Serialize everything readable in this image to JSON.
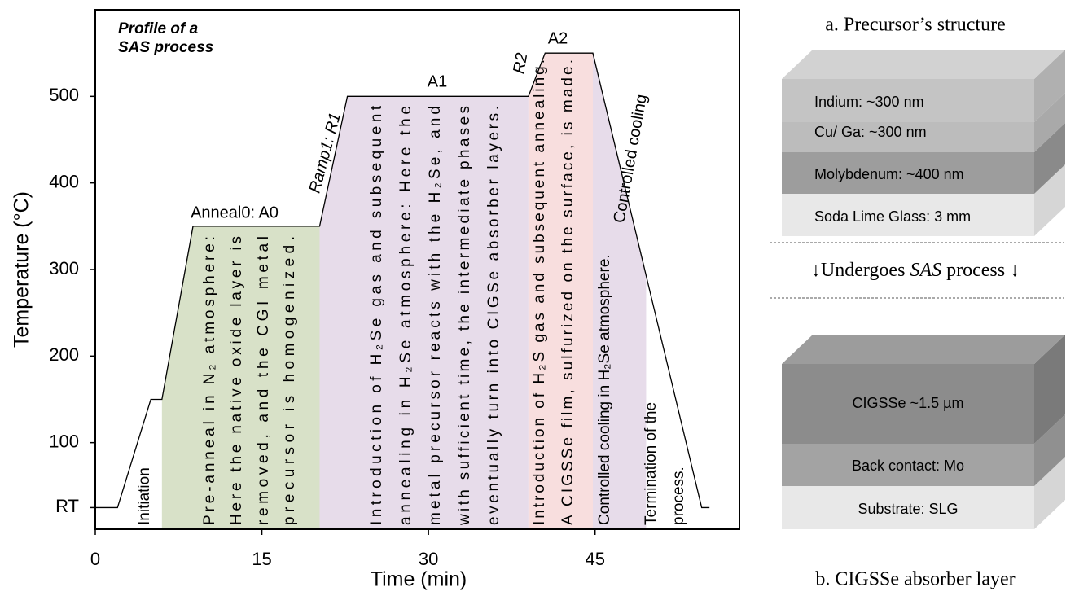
{
  "chart_data": {
    "type": "line",
    "annotation": [
      "Profile of a",
      "SAS process"
    ],
    "x_label": "Time (min)",
    "y_label": "Temperature (°C)",
    "x": [
      0,
      2,
      5,
      6,
      8.8,
      20.2,
      22.7,
      39,
      40.5,
      44.8,
      54.6,
      55.3
    ],
    "values": [
      25,
      25,
      150,
      150,
      350,
      350,
      500,
      500,
      550,
      550,
      25,
      25
    ],
    "color": "#000000",
    "xlim": [
      0,
      58
    ],
    "xticks": [
      0,
      15,
      30,
      45
    ],
    "ylim": [
      0,
      600
    ],
    "yticks": [
      {
        "value": 25,
        "label": "RT"
      },
      100,
      200,
      300,
      400,
      500
    ],
    "regions": [
      {
        "x": [
          6,
          20.2
        ],
        "color": "#d8e1c8"
      },
      {
        "x": [
          20.2,
          39
        ],
        "color": "#e7dcea"
      },
      {
        "x": [
          39,
          44.8
        ],
        "color": "#f8dede"
      },
      {
        "x": [
          44.8,
          49.6
        ],
        "color": "#e7dcea"
      }
    ],
    "phase_labels": [
      "Anneal0: A0",
      "Ramp1: R1",
      "A1",
      "R2",
      "A2",
      "Controlled cooling"
    ],
    "descriptions": [
      [
        "Initiation"
      ],
      [
        "Pre-anneal in N₂ atmosphere:",
        "Here the native oxide layer is",
        "removed, and the CGI metal",
        "precursor is homogenized."
      ],
      [
        "Introduction of H₂Se gas and subsequent",
        "annealing in H₂Se atmosphere: Here the",
        "metal precursor reacts with the H₂Se, and",
        "with sufficient time, the intermediate phases",
        "eventually turn into CIGSe absorber layers."
      ],
      [
        "Introduction of H₂S gas and subsequent annealing.",
        "A CIGSSe film, sulfurized on the surface, is made."
      ],
      [
        "Controlled cooling in H₂Se atmosphere."
      ],
      [
        "Termination of the",
        "process."
      ]
    ]
  },
  "diagram": {
    "a_title": "a. Precursor’s structure",
    "a_layers": [
      "Indium: ~300 nm",
      "Cu/ Ga: ~300 nm",
      "Molybdenum: ~400 nm",
      "Soda Lime Glass: 3 mm"
    ],
    "arrow_text": [
      "↓Undergoes ",
      "SAS",
      " process ↓"
    ],
    "b_layers": [
      "CIGSSe ~1.5 µm",
      "Back contact: Mo",
      "Substrate: SLG"
    ],
    "b_title": "b. CIGSSe absorber layer"
  }
}
